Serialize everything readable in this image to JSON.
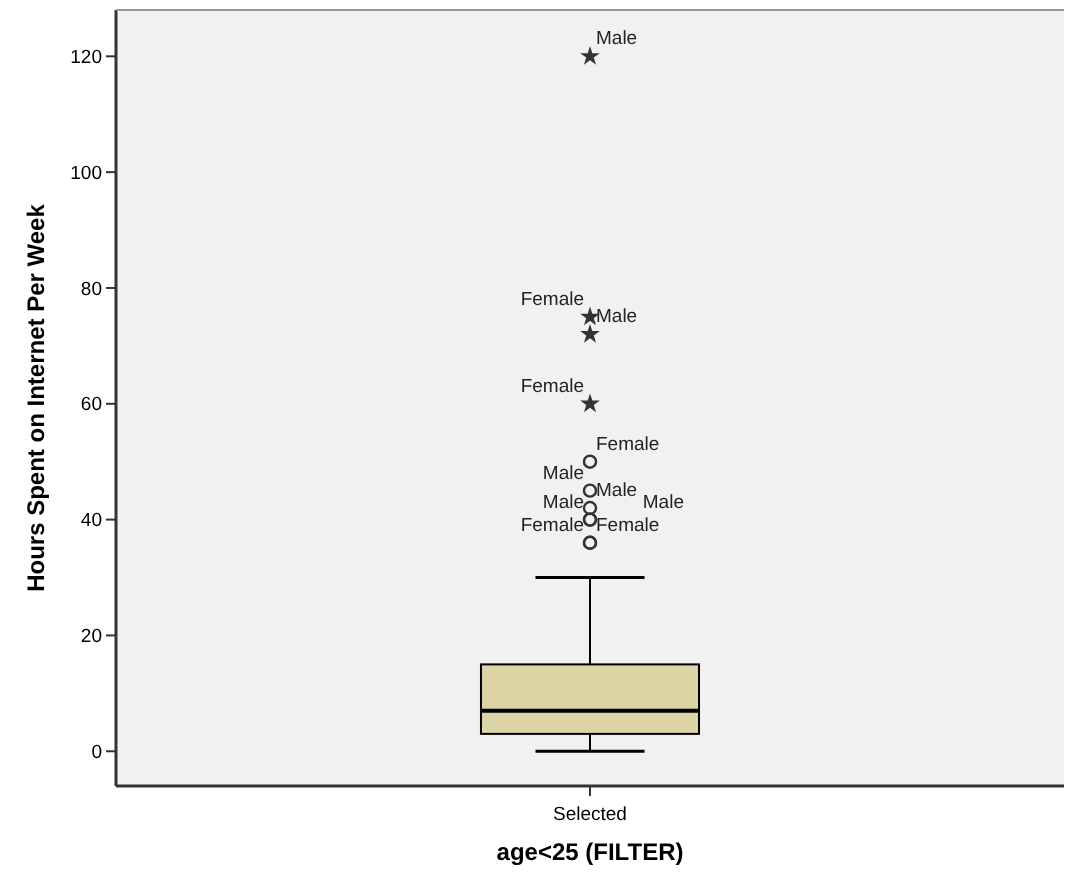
{
  "chart_data": {
    "type": "box",
    "xlabel": "age<25 (FILTER)",
    "ylabel": "Hours Spent on Internet Per Week",
    "categories": [
      "Selected"
    ],
    "series": [
      {
        "color": "#dcd4a4",
        "boxes": [
          {
            "low": 0,
            "q1": 3,
            "median": 7,
            "q3": 15,
            "high": 30,
            "outliers": [
              120,
              75,
              72,
              60,
              50,
              45,
              42,
              40,
              40,
              36,
              36
            ]
          }
        ]
      }
    ],
    "ylim": [
      -6,
      128
    ],
    "yticks": [
      0,
      20,
      40,
      60,
      80,
      100,
      120
    ],
    "grid": false,
    "annotations": [
      "Male",
      "Female",
      "Male",
      "Female",
      "Female",
      "Male",
      "Male",
      "Male",
      "Male",
      "Female",
      "Female"
    ]
  }
}
